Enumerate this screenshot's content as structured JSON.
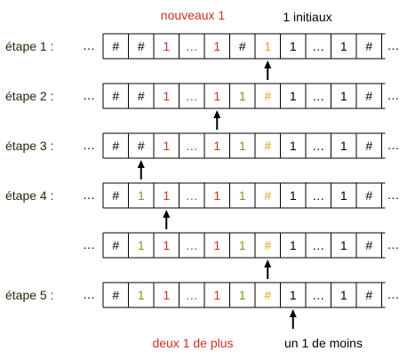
{
  "labels": {
    "new_ones": "nouveaux 1",
    "initial_ones": "1 initiaux",
    "two_more": "deux 1 de plus",
    "one_less": "un 1 de moins"
  },
  "colors": {
    "hash": "#000000",
    "red_one": "#c8321e",
    "green_one": "#6aa023",
    "orange": "#e8a01e",
    "black_one": "#000000",
    "step_label": "#1c2a0a",
    "annotation_red": "#c8321e"
  },
  "rows": [
    {
      "step": "étape 1 :",
      "cells": [
        {
          "t": "#",
          "c": "hash"
        },
        {
          "t": "#",
          "c": "hash"
        },
        {
          "t": "1",
          "c": "red_one"
        },
        {
          "t": "…",
          "c": "red_one"
        },
        {
          "t": "1",
          "c": "red_one"
        },
        {
          "t": "#",
          "c": "hash"
        },
        {
          "t": "1",
          "c": "orange"
        },
        {
          "t": "1",
          "c": "black_one"
        },
        {
          "t": "…",
          "c": "black_one"
        },
        {
          "t": "1",
          "c": "black_one"
        },
        {
          "t": "#",
          "c": "hash"
        }
      ],
      "head": 6
    },
    {
      "step": "étape 2 :",
      "cells": [
        {
          "t": "#",
          "c": "hash"
        },
        {
          "t": "#",
          "c": "hash"
        },
        {
          "t": "1",
          "c": "red_one"
        },
        {
          "t": "…",
          "c": "red_one"
        },
        {
          "t": "1",
          "c": "red_one"
        },
        {
          "t": "1",
          "c": "green_one"
        },
        {
          "t": "#",
          "c": "orange"
        },
        {
          "t": "1",
          "c": "black_one"
        },
        {
          "t": "…",
          "c": "black_one"
        },
        {
          "t": "1",
          "c": "black_one"
        },
        {
          "t": "#",
          "c": "hash"
        }
      ],
      "head": 4
    },
    {
      "step": "étape 3 :",
      "cells": [
        {
          "t": "#",
          "c": "hash"
        },
        {
          "t": "#",
          "c": "hash"
        },
        {
          "t": "1",
          "c": "red_one"
        },
        {
          "t": "…",
          "c": "red_one"
        },
        {
          "t": "1",
          "c": "red_one"
        },
        {
          "t": "1",
          "c": "green_one"
        },
        {
          "t": "#",
          "c": "orange"
        },
        {
          "t": "1",
          "c": "black_one"
        },
        {
          "t": "…",
          "c": "black_one"
        },
        {
          "t": "1",
          "c": "black_one"
        },
        {
          "t": "#",
          "c": "hash"
        }
      ],
      "head": 1
    },
    {
      "step": "étape 4 :",
      "cells": [
        {
          "t": "#",
          "c": "hash"
        },
        {
          "t": "1",
          "c": "green_one"
        },
        {
          "t": "1",
          "c": "red_one"
        },
        {
          "t": "…",
          "c": "red_one"
        },
        {
          "t": "1",
          "c": "red_one"
        },
        {
          "t": "1",
          "c": "green_one"
        },
        {
          "t": "#",
          "c": "orange"
        },
        {
          "t": "1",
          "c": "black_one"
        },
        {
          "t": "…",
          "c": "black_one"
        },
        {
          "t": "1",
          "c": "black_one"
        },
        {
          "t": "#",
          "c": "hash"
        }
      ],
      "head": 2
    },
    {
      "step": "",
      "cells": [
        {
          "t": "#",
          "c": "hash"
        },
        {
          "t": "1",
          "c": "green_one"
        },
        {
          "t": "1",
          "c": "red_one"
        },
        {
          "t": "…",
          "c": "red_one"
        },
        {
          "t": "1",
          "c": "red_one"
        },
        {
          "t": "1",
          "c": "green_one"
        },
        {
          "t": "#",
          "c": "orange"
        },
        {
          "t": "1",
          "c": "black_one"
        },
        {
          "t": "…",
          "c": "black_one"
        },
        {
          "t": "1",
          "c": "black_one"
        },
        {
          "t": "#",
          "c": "hash"
        }
      ],
      "head": 6
    },
    {
      "step": "étape 5 :",
      "cells": [
        {
          "t": "#",
          "c": "hash"
        },
        {
          "t": "1",
          "c": "green_one"
        },
        {
          "t": "1",
          "c": "red_one"
        },
        {
          "t": "…",
          "c": "red_one"
        },
        {
          "t": "1",
          "c": "red_one"
        },
        {
          "t": "1",
          "c": "green_one"
        },
        {
          "t": "#",
          "c": "orange"
        },
        {
          "t": "1",
          "c": "black_one"
        },
        {
          "t": "…",
          "c": "black_one"
        },
        {
          "t": "1",
          "c": "black_one"
        },
        {
          "t": "#",
          "c": "hash"
        }
      ],
      "head": 7
    }
  ],
  "ellipsis": "…"
}
